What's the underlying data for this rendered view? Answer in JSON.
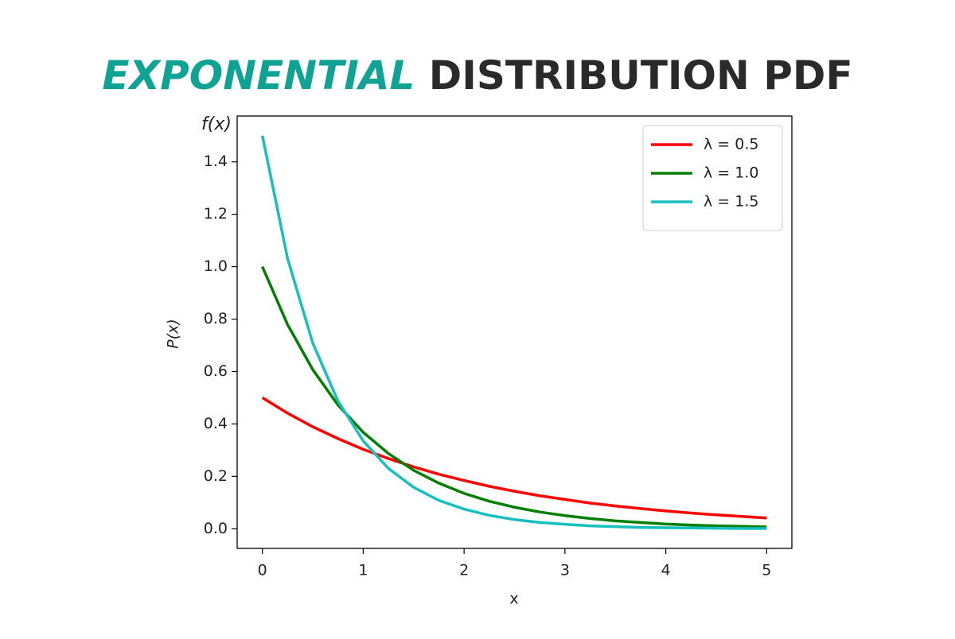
{
  "chart_data": {
    "type": "line",
    "title": {
      "highlight": "EXPONENTIAL",
      "rest": "DISTRIBUTION PDF",
      "highlight_color": "#10a394",
      "rest_color": "#2a2a2a"
    },
    "annotation": "f(x)",
    "x_label": "x",
    "y_label": "P(x)",
    "x": [
      0,
      0.25,
      0.5,
      0.75,
      1,
      1.25,
      1.5,
      1.75,
      2,
      2.25,
      2.5,
      2.75,
      3,
      3.25,
      3.5,
      3.75,
      4,
      4.25,
      4.5,
      4.75,
      5
    ],
    "series": [
      {
        "name": "λ = 0.5",
        "color": "#ff0000",
        "values": [
          0.5,
          0.441,
          0.389,
          0.344,
          0.303,
          0.268,
          0.236,
          0.208,
          0.184,
          0.162,
          0.143,
          0.126,
          0.112,
          0.098,
          0.087,
          0.077,
          0.068,
          0.06,
          0.053,
          0.047,
          0.041
        ]
      },
      {
        "name": "λ = 1.0",
        "color": "#008000",
        "values": [
          1,
          0.779,
          0.607,
          0.472,
          0.368,
          0.287,
          0.223,
          0.174,
          0.135,
          0.105,
          0.082,
          0.064,
          0.05,
          0.039,
          0.03,
          0.024,
          0.018,
          0.014,
          0.011,
          0.009,
          0.007
        ]
      },
      {
        "name": "λ = 1.5",
        "color": "#17bfbf",
        "values": [
          1.5,
          1.031,
          0.708,
          0.487,
          0.335,
          0.23,
          0.158,
          0.108,
          0.075,
          0.051,
          0.035,
          0.024,
          0.017,
          0.011,
          0.008,
          0.005,
          0.004,
          0.003,
          0.002,
          0.001,
          0.001
        ]
      }
    ],
    "xlim": [
      -0.25,
      5.25
    ],
    "ylim": [
      -0.075,
      1.575
    ],
    "xticks": [
      0,
      1,
      2,
      3,
      4,
      5
    ],
    "yticks": [
      {
        "value": 0,
        "label": "0.0"
      },
      {
        "value": 0.2,
        "label": "0.2"
      },
      {
        "value": 0.4,
        "label": "0.4"
      },
      {
        "value": 0.6,
        "label": "0.6"
      },
      {
        "value": 0.8,
        "label": "0.8"
      },
      {
        "value": 1,
        "label": "1.0"
      },
      {
        "value": 1.2,
        "label": "1.2"
      },
      {
        "value": 1.4,
        "label": "1.4"
      }
    ],
    "legend": "upper right",
    "grid": false
  }
}
